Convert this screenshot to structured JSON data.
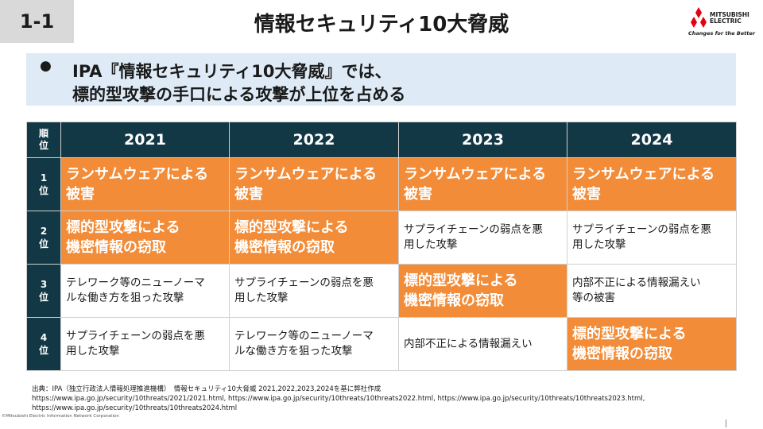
{
  "slide_number": "1-1",
  "title": "情報セキュリティ10大脅威",
  "logo": {
    "line1": "MITSUBISHI",
    "line2": "ELECTRIC",
    "tagline": "Changes for the Better"
  },
  "headline": {
    "line1": "IPA『情報セキュリティ10大脅威』では、",
    "line2": "標的型攻撃の手口による攻撃が上位を占める"
  },
  "table": {
    "rank_header": [
      "順",
      "位"
    ],
    "years": [
      "2021",
      "2022",
      "2023",
      "2024"
    ],
    "rows": [
      {
        "rank": [
          "1",
          "位"
        ],
        "cells": [
          {
            "line1": "ランサムウェアによる",
            "line2": "被害"
          },
          {
            "line1": "ランサムウェアによる",
            "line2": "被害"
          },
          {
            "line1": "ランサムウェアによる",
            "line2": "被害"
          },
          {
            "line1": "ランサムウェアによる",
            "line2": "被害"
          }
        ]
      },
      {
        "rank": [
          "2",
          "位"
        ],
        "cells": [
          {
            "line1": "標的型攻撃による",
            "line2": "機密情報の窃取"
          },
          {
            "line1": "標的型攻撃による",
            "line2": "機密情報の窃取"
          },
          {
            "line1": "サプライチェーンの弱点を悪",
            "line2": "用した攻撃"
          },
          {
            "line1": "サプライチェーンの弱点を悪",
            "line2": "用した攻撃"
          }
        ]
      },
      {
        "rank": [
          "3",
          "位"
        ],
        "cells": [
          {
            "line1": "テレワーク等のニューノーマ",
            "line2": "ルな働き方を狙った攻撃"
          },
          {
            "line1": "サプライチェーンの弱点を悪",
            "line2": "用した攻撃"
          },
          {
            "line1": "標的型攻撃による",
            "line2": "機密情報の窃取"
          },
          {
            "line1": "内部不正による情報漏えい",
            "line2": "等の被害"
          }
        ]
      },
      {
        "rank": [
          "4",
          "位"
        ],
        "cells": [
          {
            "line1": "サプライチェーンの弱点を悪",
            "line2": "用した攻撃"
          },
          {
            "line1": "テレワーク等のニューノーマ",
            "line2": "ルな働き方を狙った攻撃"
          },
          {
            "line1": "内部不正による情報漏えい",
            "line2": ""
          },
          {
            "line1": "標的型攻撃による",
            "line2": "機密情報の窃取"
          }
        ]
      }
    ]
  },
  "source": {
    "line1": "出典：IPA（独立行政法人情報処理推進機構）　情報セキュリティ10大脅威 2021,2022,2023,2024を基に弊社作成",
    "line2": "https://www.ipa.go.jp/security/10threats/2021/2021.html, https://www.ipa.go.jp/security/10threats/10threats2022.html, https://www.ipa.go.jp/security/10threats/10threats2023.html,",
    "line3": "https://www.ipa.go.jp/security/10threats/10threats2024.html"
  },
  "copyright": "©Mitsubishi Electric Information Network Corporation",
  "colors": {
    "header_bg": "#123845",
    "highlight": "#f28c38",
    "headline_bg": "#deebf7",
    "logo_red": "#e60012"
  },
  "highlighted_cells": [
    [
      0,
      0
    ],
    [
      0,
      1
    ],
    [
      0,
      2
    ],
    [
      0,
      3
    ],
    [
      1,
      0
    ],
    [
      1,
      1
    ],
    [
      2,
      2
    ],
    [
      3,
      3
    ]
  ]
}
